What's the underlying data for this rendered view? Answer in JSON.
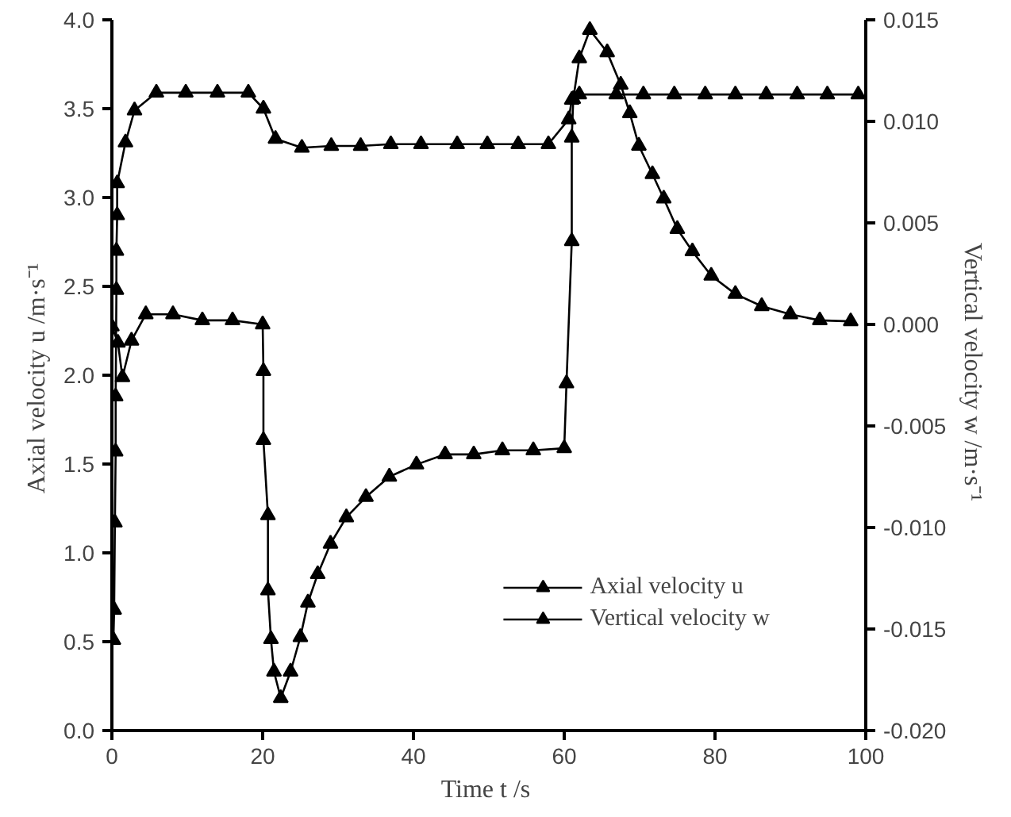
{
  "chart_data": {
    "type": "line",
    "xlabel": "Time  t /s",
    "ylabel": "Axial velocity  u /m·s⁻¹",
    "y2label": "Vertical velocity  w /m·s⁻¹",
    "xlim": [
      0,
      100
    ],
    "xticks": [
      0,
      20,
      40,
      60,
      80,
      100
    ],
    "ylim": [
      0,
      4
    ],
    "yticks": [
      {
        "value": 0,
        "label": "0.0"
      },
      {
        "value": 0.5,
        "label": "0.5"
      },
      {
        "value": 1,
        "label": "1.0"
      },
      {
        "value": 1.5,
        "label": "1.5"
      },
      {
        "value": 2,
        "label": "2.0"
      },
      {
        "value": 2.5,
        "label": "2.5"
      },
      {
        "value": 3,
        "label": "3.0"
      },
      {
        "value": 3.5,
        "label": "3.5"
      },
      {
        "value": 4,
        "label": "4.0"
      }
    ],
    "y2lim": [
      -0.02,
      0.015
    ],
    "y2ticks": [
      {
        "value": -0.02,
        "label": "-0.020"
      },
      -0.015,
      {
        "value": -0.01,
        "label": "-0.010"
      },
      -0.005,
      {
        "value": 0,
        "label": "0.000"
      },
      0.005,
      {
        "value": 0.01,
        "label": "0.010"
      },
      0.015
    ],
    "grid": false,
    "legend": "bottom right",
    "line_style": "solid",
    "series": [
      {
        "name": "Axial velocity u",
        "color": "#000000",
        "marker": "triangle",
        "x": [
          0.2,
          0.3,
          0.4,
          0.5,
          0.5,
          0.6,
          0.6,
          0.7,
          0.7,
          1.8,
          3,
          5.9,
          9.8,
          14,
          18.1,
          20.1,
          21.7,
          25.2,
          29.1,
          33,
          37,
          41,
          45.8,
          49.8,
          53.9,
          57.9,
          60.6,
          61,
          62,
          66.9,
          70.5,
          74.6,
          78.7,
          82.7,
          86.8,
          90.9,
          94.9,
          99
        ],
        "values": [
          0.51,
          0.68,
          1.17,
          1.57,
          1.88,
          2.48,
          2.7,
          2.9,
          3.08,
          3.31,
          3.49,
          3.59,
          3.59,
          3.59,
          3.59,
          3.5,
          3.33,
          3.28,
          3.29,
          3.29,
          3.3,
          3.3,
          3.3,
          3.3,
          3.3,
          3.3,
          3.44,
          3.55,
          3.58,
          3.58,
          3.58,
          3.58,
          3.58,
          3.58,
          3.58,
          3.58,
          3.58,
          3.58
        ]
      },
      {
        "name": "Vertical velocity w",
        "color": "#000000",
        "marker": "triangle",
        "axis": "y2",
        "x": [
          0,
          0.8,
          1.4,
          2.6,
          4.5,
          8.1,
          12,
          16,
          20,
          20.1,
          20.1,
          20.7,
          20.7,
          21.1,
          21.5,
          22.4,
          23.7,
          25,
          26,
          27.3,
          29,
          31.1,
          33.7,
          36.8,
          40.4,
          44.2,
          48,
          51.8,
          55.9,
          60,
          60.3,
          61,
          61,
          61.2,
          62,
          63.4,
          65.7,
          67.5,
          68.7,
          69.9,
          71.7,
          73.2,
          75,
          77,
          79.5,
          82.7,
          86.2,
          90,
          93.9,
          98
        ],
        "values": [
          -0.0001,
          -0.0009,
          -0.0026,
          -0.0008,
          0.0005,
          0.0005,
          0.0002,
          0.0002,
          0.0,
          -0.0023,
          -0.0057,
          -0.0094,
          -0.0131,
          -0.0155,
          -0.0171,
          -0.0184,
          -0.0171,
          -0.0154,
          -0.0137,
          -0.0123,
          -0.0108,
          -0.0095,
          -0.0085,
          -0.0075,
          -0.0069,
          -0.0064,
          -0.0064,
          -0.0062,
          -0.0062,
          -0.0061,
          -0.0029,
          0.0041,
          0.0092,
          0.0111,
          0.0131,
          0.0145,
          0.0134,
          0.0118,
          0.0104,
          0.0088,
          0.0074,
          0.0062,
          0.0047,
          0.0036,
          0.0024,
          0.0015,
          0.0009,
          0.0005,
          0.0002,
          0.00015
        ]
      }
    ]
  }
}
